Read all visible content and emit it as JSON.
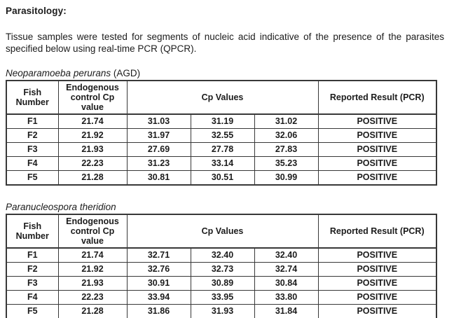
{
  "page": {
    "heading": "Parasitology:",
    "intro": "Tissue samples were tested for segments of nucleic acid indicative of the presence of the parasites specified below using real-time PCR (QPCR)."
  },
  "tables": [
    {
      "title_italic": "Neoparamoeba perurans",
      "title_suffix": " (AGD)",
      "headers": {
        "fish": "Fish Number",
        "endogenous": "Endogenous control Cp value",
        "cp": "Cp Values",
        "result": "Reported Result (PCR)"
      },
      "rows": [
        {
          "fish": "F1",
          "endogenous": "21.74",
          "cp1": "31.03",
          "cp2": "31.19",
          "cp3": "31.02",
          "result": "POSITIVE"
        },
        {
          "fish": "F2",
          "endogenous": "21.92",
          "cp1": "31.97",
          "cp2": "32.55",
          "cp3": "32.06",
          "result": "POSITIVE"
        },
        {
          "fish": "F3",
          "endogenous": "21.93",
          "cp1": "27.69",
          "cp2": "27.78",
          "cp3": "27.83",
          "result": "POSITIVE"
        },
        {
          "fish": "F4",
          "endogenous": "22.23",
          "cp1": "31.23",
          "cp2": "33.14",
          "cp3": "35.23",
          "result": "POSITIVE"
        },
        {
          "fish": "F5",
          "endogenous": "21.28",
          "cp1": "30.81",
          "cp2": "30.51",
          "cp3": "30.99",
          "result": "POSITIVE"
        }
      ]
    },
    {
      "title_italic": "Paranucleospora theridion",
      "title_suffix": "",
      "headers": {
        "fish": "Fish Number",
        "endogenous": "Endogenous control Cp value",
        "cp": "Cp Values",
        "result": "Reported Result (PCR)"
      },
      "rows": [
        {
          "fish": "F1",
          "endogenous": "21.74",
          "cp1": "32.71",
          "cp2": "32.40",
          "cp3": "32.40",
          "result": "POSITIVE"
        },
        {
          "fish": "F2",
          "endogenous": "21.92",
          "cp1": "32.76",
          "cp2": "32.73",
          "cp3": "32.74",
          "result": "POSITIVE"
        },
        {
          "fish": "F3",
          "endogenous": "21.93",
          "cp1": "30.91",
          "cp2": "30.89",
          "cp3": "30.84",
          "result": "POSITIVE"
        },
        {
          "fish": "F4",
          "endogenous": "22.23",
          "cp1": "33.94",
          "cp2": "33.95",
          "cp3": "33.80",
          "result": "POSITIVE"
        },
        {
          "fish": "F5",
          "endogenous": "21.28",
          "cp1": "31.86",
          "cp2": "31.93",
          "cp3": "31.84",
          "result": "POSITIVE"
        }
      ]
    }
  ]
}
